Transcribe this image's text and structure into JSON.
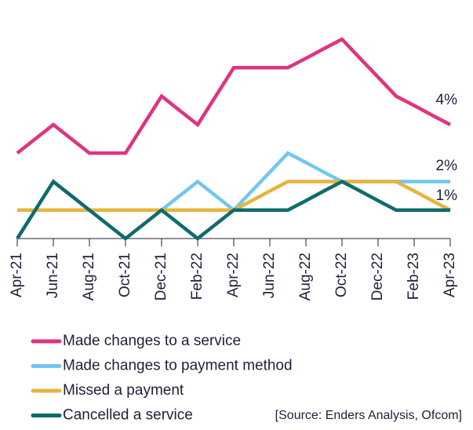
{
  "chart_data": {
    "type": "line",
    "categories": [
      "Apr-21",
      null,
      "Jun-21",
      null,
      "Aug-21",
      null,
      "Oct-21",
      null,
      "Dec-21",
      null,
      "Feb-22",
      null,
      "Apr-22",
      null,
      "Jun-22",
      null,
      "Aug-22",
      null,
      "Oct-22",
      null,
      "Dec-22",
      null,
      "Feb-23",
      null,
      "Apr-23"
    ],
    "ylim": [
      0,
      7
    ],
    "series": [
      {
        "name": "Made changes to a service",
        "color": "#e0337f",
        "values": [
          3,
          3.5,
          4,
          3.5,
          3,
          3,
          3,
          4,
          5,
          4.5,
          4,
          5,
          6,
          6,
          6,
          6,
          6.33,
          6.67,
          7,
          6.33,
          5.67,
          5,
          4.67,
          4.33,
          4
        ]
      },
      {
        "name": "Made changes to payment method",
        "color": "#72c7ee",
        "values": [
          1,
          1,
          1,
          1,
          1,
          1,
          1,
          1,
          1,
          1.5,
          2,
          1.5,
          1,
          1.67,
          2.33,
          3,
          2.67,
          2.33,
          2,
          2,
          2,
          2,
          2,
          2,
          2
        ]
      },
      {
        "name": "Missed a payment",
        "color": "#e6b43e",
        "values": [
          1,
          1,
          1,
          1,
          1,
          1,
          1,
          1,
          1,
          1,
          1,
          1,
          1,
          1.33,
          1.67,
          2,
          2,
          2,
          2,
          2,
          2,
          2,
          1.67,
          1.33,
          1
        ]
      },
      {
        "name": "Cancelled a service",
        "color": "#0f6b6c",
        "values": [
          0,
          1,
          2,
          1.5,
          1,
          0.5,
          0,
          0.5,
          1,
          0.5,
          0,
          0.5,
          1,
          1,
          1,
          1,
          1.33,
          1.67,
          2,
          1.67,
          1.33,
          1,
          1,
          1,
          1
        ]
      }
    ],
    "annotations": [
      "4%",
      "2%",
      "1%"
    ],
    "source": "[Source: Enders Analysis, Ofcom]"
  }
}
